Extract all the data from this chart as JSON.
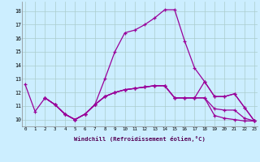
{
  "xlabel": "Windchill (Refroidissement éolien,°C)",
  "background_color": "#cceeff",
  "line_color": "#990099",
  "grid_color": "#aacccc",
  "x_ticks": [
    0,
    1,
    2,
    3,
    4,
    5,
    6,
    7,
    8,
    9,
    10,
    11,
    12,
    13,
    14,
    15,
    16,
    17,
    18,
    19,
    20,
    21,
    22,
    23
  ],
  "y_ticks": [
    10,
    11,
    12,
    13,
    14,
    15,
    16,
    17,
    18
  ],
  "ylim": [
    9.5,
    18.7
  ],
  "xlim": [
    -0.3,
    23.3
  ],
  "lines": [
    {
      "x": [
        0,
        1,
        2,
        3,
        4,
        5,
        6,
        7,
        8,
        9,
        10,
        11,
        12,
        13,
        14,
        15,
        16,
        17,
        18,
        19,
        20,
        21,
        22,
        23
      ],
      "y": [
        12.6,
        10.6,
        11.6,
        11.1,
        10.4,
        10.0,
        10.4,
        11.1,
        13.0,
        15.0,
        16.4,
        16.6,
        17.0,
        17.5,
        18.1,
        18.1,
        15.8,
        13.8,
        12.8,
        11.7,
        11.7,
        11.9,
        10.9,
        9.9
      ]
    },
    {
      "x": [
        2,
        3,
        4,
        5,
        6,
        7,
        8,
        9,
        10,
        11,
        12,
        13,
        14,
        15,
        16,
        17,
        18,
        19,
        20,
        21,
        22,
        23
      ],
      "y": [
        11.6,
        11.1,
        10.4,
        10.0,
        10.4,
        11.1,
        11.7,
        12.0,
        12.2,
        12.3,
        12.4,
        12.5,
        12.5,
        11.6,
        11.6,
        11.6,
        12.8,
        11.7,
        11.7,
        11.9,
        10.9,
        9.9
      ]
    },
    {
      "x": [
        2,
        3,
        4,
        5,
        6,
        7,
        8,
        9,
        10,
        11,
        12,
        13,
        14,
        15,
        16,
        17,
        18,
        19,
        20,
        21,
        22,
        23
      ],
      "y": [
        11.6,
        11.1,
        10.4,
        10.0,
        10.4,
        11.1,
        11.7,
        12.0,
        12.2,
        12.3,
        12.4,
        12.5,
        12.5,
        11.6,
        11.6,
        11.6,
        11.6,
        10.8,
        10.7,
        10.7,
        10.1,
        9.9
      ]
    },
    {
      "x": [
        2,
        3,
        4,
        5,
        6,
        7,
        8,
        9,
        10,
        11,
        12,
        13,
        14,
        15,
        16,
        17,
        18,
        19,
        20,
        21,
        22,
        23
      ],
      "y": [
        11.6,
        11.1,
        10.4,
        10.0,
        10.4,
        11.1,
        11.7,
        12.0,
        12.2,
        12.3,
        12.4,
        12.5,
        12.5,
        11.6,
        11.6,
        11.6,
        11.6,
        10.3,
        10.1,
        10.0,
        9.9,
        9.9
      ]
    }
  ]
}
